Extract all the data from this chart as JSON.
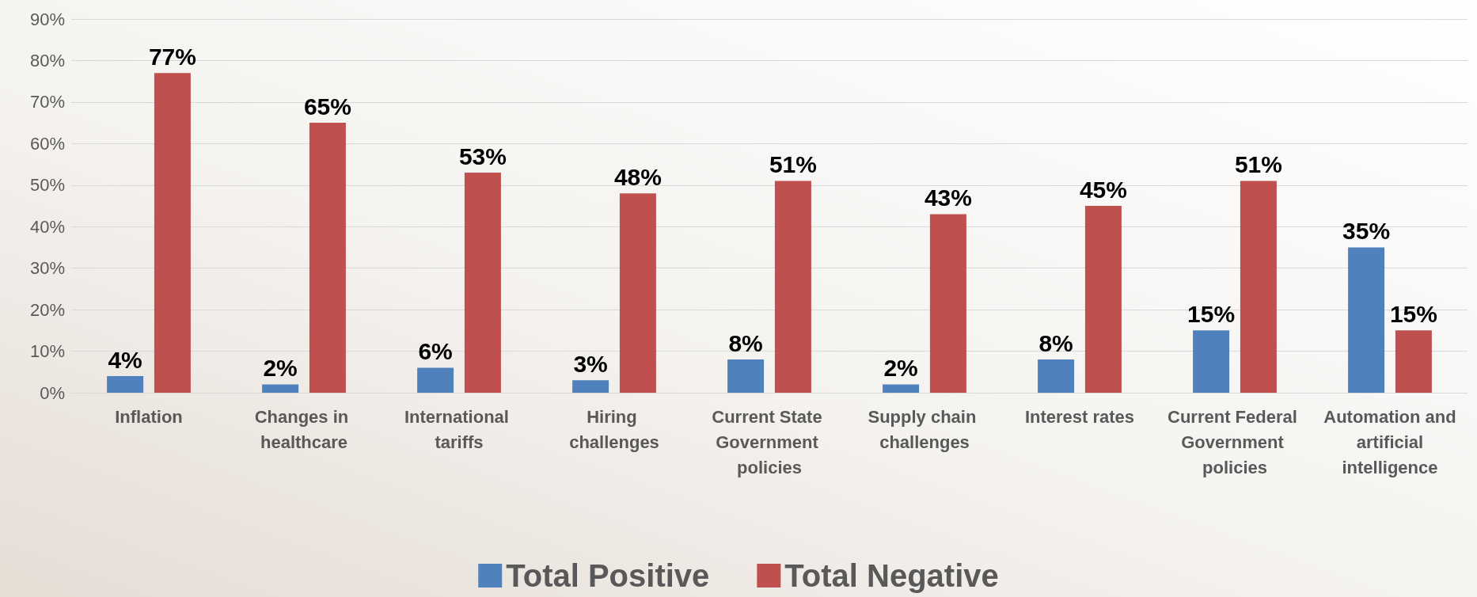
{
  "chart_data": {
    "type": "bar",
    "categories": [
      "Inflation",
      "Changes in healthcare",
      "International tariffs",
      "Hiring challenges",
      "Current State Government policies",
      "Supply chain challenges",
      "Interest rates",
      "Current Federal Government policies",
      "Automation and artificial intelligence"
    ],
    "series": [
      {
        "name": "Total Positive",
        "color": "#4f81bd",
        "values": [
          4,
          2,
          6,
          3,
          8,
          2,
          8,
          15,
          35
        ],
        "value_labels": [
          "4%",
          "2%",
          "6%",
          "3%",
          "8%",
          "2%",
          "8%",
          "15%",
          "35%"
        ]
      },
      {
        "name": "Total Negative",
        "color": "#c0504d",
        "values": [
          77,
          65,
          53,
          48,
          51,
          43,
          45,
          51,
          15
        ],
        "value_labels": [
          "77%",
          "65%",
          "53%",
          "48%",
          "51%",
          "43%",
          "45%",
          "51%",
          "15%"
        ]
      }
    ],
    "ylim": [
      0,
      90
    ],
    "yticks": [
      {
        "value": 0,
        "label": "0%"
      },
      {
        "value": 10,
        "label": "10%"
      },
      {
        "value": 20,
        "label": "20%"
      },
      {
        "value": 30,
        "label": "30%"
      },
      {
        "value": 40,
        "label": "40%"
      },
      {
        "value": 50,
        "label": "50%"
      },
      {
        "value": 60,
        "label": "60%"
      },
      {
        "value": 70,
        "label": "70%"
      },
      {
        "value": 80,
        "label": "80%"
      },
      {
        "value": 90,
        "label": "90%"
      }
    ],
    "grid": "y",
    "legend": "bottom"
  }
}
